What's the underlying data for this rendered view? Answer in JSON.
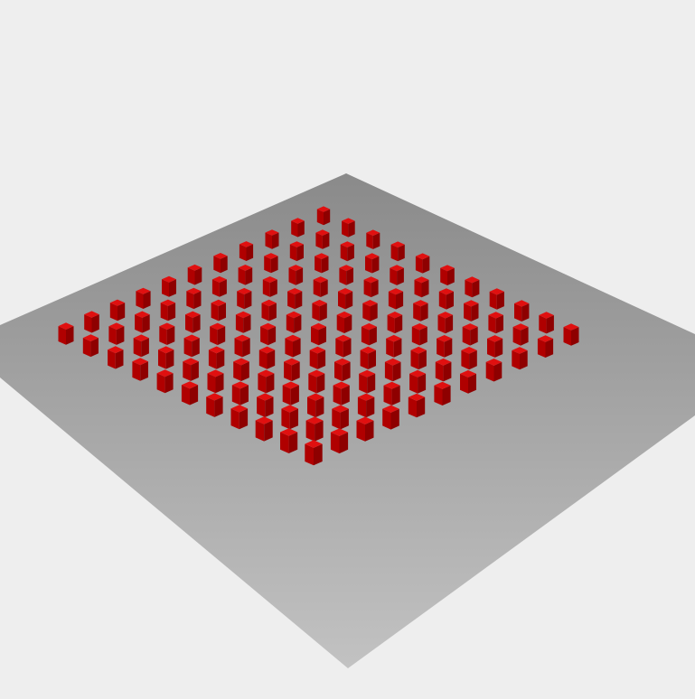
{
  "scene": {
    "background_color": "#eeeeee",
    "floor": {
      "shape": "square-plane",
      "color_far": "#8a8a8a",
      "color_near": "#c2c2c2"
    },
    "grid": {
      "rows": 11,
      "cols": 11,
      "object_count": 121,
      "object_shape": "rectangular-block",
      "object_color": "#cc0000",
      "top_color": "#e01010",
      "left_color": "#b00000",
      "right_color": "#8e0000"
    }
  }
}
